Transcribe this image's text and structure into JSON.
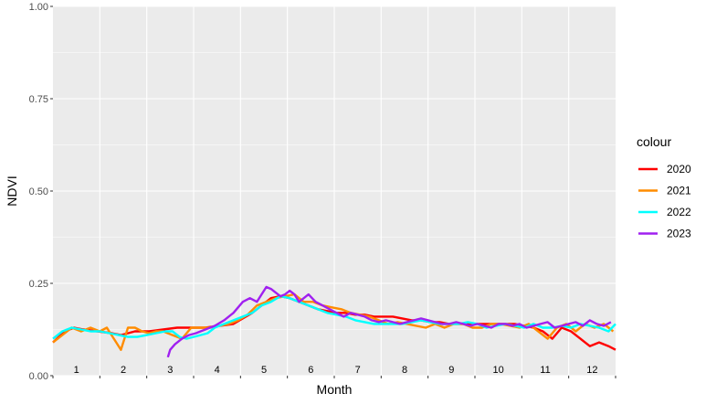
{
  "chart_data": {
    "type": "line",
    "xlabel": "Month",
    "ylabel": "NDVI",
    "ylim": [
      0,
      1
    ],
    "xlim": [
      0.55,
      12.55
    ],
    "yticks": [
      "0.00",
      "0.25",
      "0.50",
      "0.75",
      "1.00"
    ],
    "ytick_values": [
      0,
      0.25,
      0.5,
      0.75,
      1
    ],
    "month_labels": [
      "1",
      "2",
      "3",
      "4",
      "5",
      "6",
      "7",
      "8",
      "9",
      "10",
      "11",
      "12"
    ],
    "grid": true,
    "legend_title": "colour",
    "legend_position": "right",
    "series": [
      {
        "name": "2020",
        "color": "#ff0000",
        "x": [
          0.55,
          0.8,
          1.0,
          1.2,
          1.5,
          1.8,
          2.0,
          2.3,
          2.6,
          2.9,
          3.2,
          3.5,
          3.8,
          4.1,
          4.4,
          4.6,
          4.8,
          5.0,
          5.2,
          5.4,
          5.6,
          5.8,
          6.0,
          6.2,
          6.4,
          6.6,
          6.8,
          7.0,
          7.2,
          7.4,
          7.6,
          7.8,
          8.0,
          8.2,
          8.4,
          8.6,
          8.8,
          9.0,
          9.2,
          9.4,
          9.6,
          9.8,
          10.0,
          10.2,
          10.4,
          10.6,
          10.8,
          11.0,
          11.2,
          11.4,
          11.6,
          11.8,
          12.0,
          12.2,
          12.4,
          12.55
        ],
        "y": [
          0.09,
          0.12,
          0.13,
          0.125,
          0.12,
          0.115,
          0.11,
          0.12,
          0.12,
          0.125,
          0.13,
          0.13,
          0.13,
          0.135,
          0.14,
          0.155,
          0.17,
          0.19,
          0.21,
          0.215,
          0.21,
          0.2,
          0.19,
          0.18,
          0.175,
          0.17,
          0.17,
          0.165,
          0.165,
          0.16,
          0.16,
          0.16,
          0.155,
          0.15,
          0.15,
          0.145,
          0.145,
          0.14,
          0.14,
          0.14,
          0.14,
          0.14,
          0.14,
          0.14,
          0.14,
          0.135,
          0.13,
          0.12,
          0.1,
          0.13,
          0.12,
          0.1,
          0.08,
          0.09,
          0.08,
          0.07
        ]
      },
      {
        "name": "2021",
        "color": "#ff8c00",
        "x": [
          0.55,
          0.75,
          0.95,
          1.15,
          1.35,
          1.55,
          1.7,
          1.85,
          2.0,
          2.15,
          2.3,
          2.45,
          2.6,
          2.75,
          2.9,
          3.1,
          3.3,
          3.5,
          3.7,
          3.9,
          4.1,
          4.3,
          4.5,
          4.7,
          4.9,
          5.1,
          5.3,
          5.5,
          5.7,
          5.9,
          6.1,
          6.3,
          6.5,
          6.7,
          6.9,
          7.1,
          7.3,
          7.5,
          7.7,
          7.9,
          8.1,
          8.3,
          8.5,
          8.7,
          8.9,
          9.1,
          9.3,
          9.5,
          9.7,
          9.9,
          10.1,
          10.3,
          10.5,
          10.7,
          10.9,
          11.1,
          11.3,
          11.5,
          11.7,
          11.9,
          12.1,
          12.3,
          12.5
        ],
        "y": [
          0.09,
          0.11,
          0.13,
          0.12,
          0.13,
          0.12,
          0.13,
          0.1,
          0.07,
          0.13,
          0.13,
          0.12,
          0.115,
          0.12,
          0.12,
          0.11,
          0.1,
          0.13,
          0.13,
          0.13,
          0.135,
          0.14,
          0.15,
          0.165,
          0.19,
          0.2,
          0.21,
          0.215,
          0.22,
          0.2,
          0.2,
          0.19,
          0.185,
          0.18,
          0.17,
          0.165,
          0.16,
          0.15,
          0.14,
          0.145,
          0.14,
          0.135,
          0.13,
          0.14,
          0.13,
          0.14,
          0.14,
          0.13,
          0.13,
          0.14,
          0.14,
          0.135,
          0.13,
          0.14,
          0.12,
          0.1,
          0.13,
          0.14,
          0.12,
          0.14,
          0.13,
          0.14,
          0.12
        ]
      },
      {
        "name": "2022",
        "color": "#00ffff",
        "x": [
          0.55,
          0.75,
          0.95,
          1.15,
          1.35,
          1.55,
          1.75,
          1.95,
          2.15,
          2.35,
          2.55,
          2.75,
          2.95,
          3.1,
          3.25,
          3.4,
          3.55,
          3.7,
          3.85,
          4.0,
          4.2,
          4.4,
          4.6,
          4.8,
          5.0,
          5.2,
          5.4,
          5.6,
          5.8,
          6.0,
          6.2,
          6.4,
          6.6,
          6.8,
          7.0,
          7.2,
          7.4,
          7.6,
          7.8,
          8.0,
          8.2,
          8.4,
          8.6,
          8.8,
          9.0,
          9.2,
          9.4,
          9.6,
          9.8,
          10.0,
          10.2,
          10.4,
          10.6,
          10.8,
          11.0,
          11.2,
          11.4,
          11.6,
          11.8,
          12.0,
          12.2,
          12.4,
          12.55
        ],
        "y": [
          0.1,
          0.12,
          0.13,
          0.125,
          0.12,
          0.12,
          0.115,
          0.11,
          0.105,
          0.105,
          0.11,
          0.115,
          0.12,
          0.12,
          0.105,
          0.1,
          0.105,
          0.11,
          0.115,
          0.13,
          0.14,
          0.15,
          0.16,
          0.17,
          0.19,
          0.2,
          0.215,
          0.21,
          0.2,
          0.19,
          0.18,
          0.17,
          0.165,
          0.16,
          0.15,
          0.145,
          0.14,
          0.14,
          0.14,
          0.14,
          0.145,
          0.15,
          0.145,
          0.14,
          0.14,
          0.14,
          0.145,
          0.14,
          0.13,
          0.135,
          0.14,
          0.135,
          0.13,
          0.14,
          0.13,
          0.13,
          0.135,
          0.13,
          0.14,
          0.135,
          0.13,
          0.12,
          0.14
        ]
      },
      {
        "name": "2023",
        "color": "#a020f0",
        "x": [
          3.0,
          3.05,
          3.15,
          3.3,
          3.45,
          3.6,
          3.8,
          4.0,
          4.2,
          4.4,
          4.6,
          4.75,
          4.9,
          5.0,
          5.1,
          5.2,
          5.3,
          5.4,
          5.5,
          5.6,
          5.7,
          5.8,
          5.9,
          6.0,
          6.15,
          6.3,
          6.45,
          6.6,
          6.75,
          6.9,
          7.05,
          7.2,
          7.35,
          7.5,
          7.65,
          7.8,
          7.95,
          8.1,
          8.25,
          8.4,
          8.55,
          8.7,
          8.85,
          9.0,
          9.15,
          9.3,
          9.45,
          9.6,
          9.75,
          9.9,
          10.05,
          10.2,
          10.35,
          10.5,
          10.65,
          10.8,
          10.95,
          11.1,
          11.25,
          11.4,
          11.55,
          11.7,
          11.85,
          12.0,
          12.15,
          12.3,
          12.45
        ],
        "y": [
          0.05,
          0.07,
          0.085,
          0.1,
          0.11,
          0.115,
          0.125,
          0.135,
          0.15,
          0.17,
          0.2,
          0.21,
          0.2,
          0.22,
          0.24,
          0.235,
          0.225,
          0.215,
          0.22,
          0.23,
          0.22,
          0.2,
          0.21,
          0.22,
          0.2,
          0.19,
          0.18,
          0.17,
          0.16,
          0.17,
          0.165,
          0.16,
          0.15,
          0.145,
          0.15,
          0.145,
          0.14,
          0.145,
          0.15,
          0.155,
          0.15,
          0.145,
          0.14,
          0.14,
          0.145,
          0.14,
          0.135,
          0.14,
          0.135,
          0.13,
          0.14,
          0.14,
          0.135,
          0.14,
          0.13,
          0.135,
          0.14,
          0.145,
          0.13,
          0.135,
          0.14,
          0.145,
          0.135,
          0.15,
          0.14,
          0.135,
          0.145
        ]
      }
    ]
  }
}
